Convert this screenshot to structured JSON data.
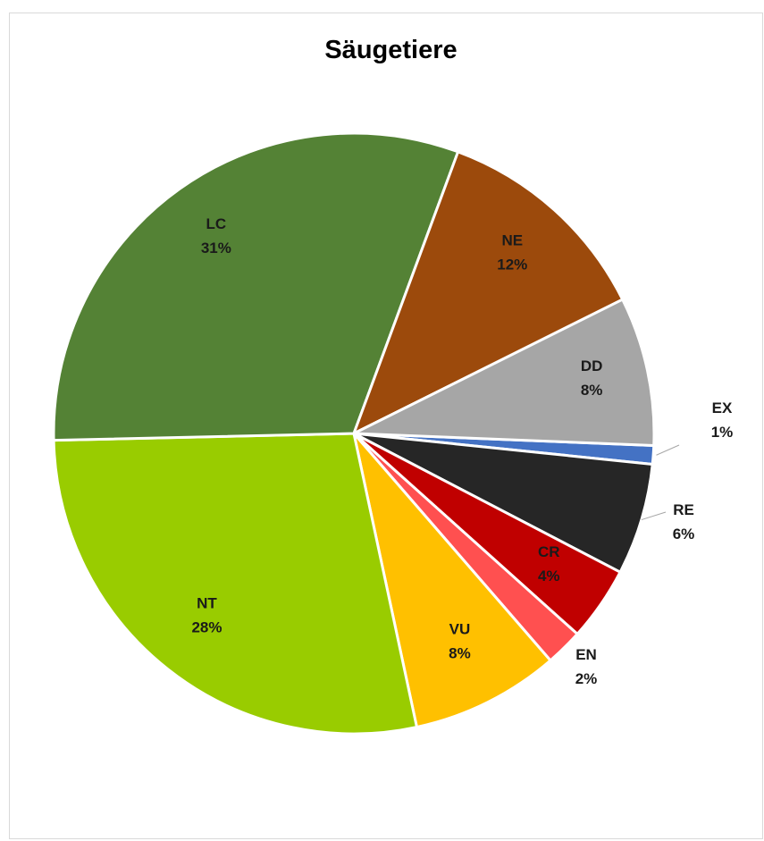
{
  "chart_data": {
    "type": "pie",
    "title": "Säugetiere",
    "slices": [
      {
        "label": "EX",
        "value": 1,
        "percent_label": "1%",
        "color": "#4472C4"
      },
      {
        "label": "RE",
        "value": 6,
        "percent_label": "6%",
        "color": "#262626"
      },
      {
        "label": "CR",
        "value": 4,
        "percent_label": "4%",
        "color": "#C00000"
      },
      {
        "label": "EN",
        "value": 2,
        "percent_label": "2%",
        "color": "#FF5050"
      },
      {
        "label": "VU",
        "value": 8,
        "percent_label": "8%",
        "color": "#FFC000"
      },
      {
        "label": "NT",
        "value": 28,
        "percent_label": "28%",
        "color": "#99CC00"
      },
      {
        "label": "LC",
        "value": 31,
        "percent_label": "31%",
        "color": "#548235"
      },
      {
        "label": "NE",
        "value": 12,
        "percent_label": "12%",
        "color": "#9C4A0C"
      },
      {
        "label": "DD",
        "value": 8,
        "percent_label": "8%",
        "color": "#A6A6A6"
      }
    ],
    "legend": "none",
    "label_style": "category name and percentage on slices; outside with leader lines for small slices"
  }
}
